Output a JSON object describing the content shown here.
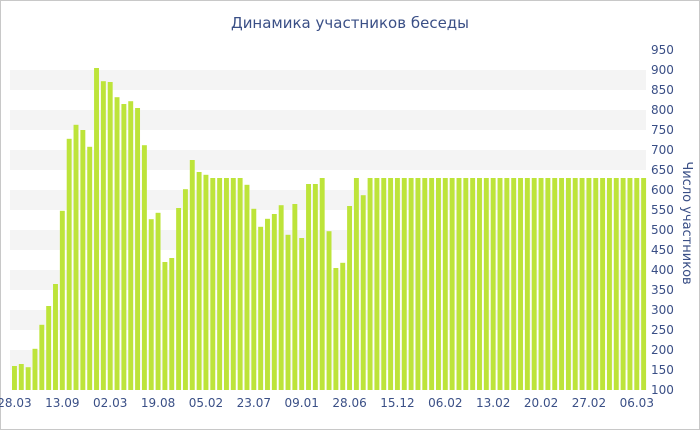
{
  "chart_data": {
    "type": "bar",
    "title": "Динамика участников беседы",
    "xlabel": "",
    "ylabel": "Число участников",
    "ylim": [
      100,
      950
    ],
    "yticks": [
      100,
      150,
      200,
      250,
      300,
      350,
      400,
      450,
      500,
      550,
      600,
      650,
      700,
      750,
      800,
      850,
      900,
      950
    ],
    "grid": "alternating horizontal bands",
    "bar_color": "#bde43a",
    "x_tick_labels": [
      "28.03",
      "13.09",
      "02.03",
      "19.08",
      "05.02",
      "23.07",
      "09.01",
      "28.06",
      "15.12",
      "06.02",
      "13.02",
      "20.02",
      "27.02",
      "06.03"
    ],
    "x_tick_bar_index": [
      0,
      7,
      14,
      21,
      28,
      35,
      42,
      49,
      56,
      63,
      70,
      77,
      84,
      91
    ],
    "series": [
      {
        "values": [
          160,
          165,
          157,
          203,
          263,
          310,
          365,
          548,
          728,
          763,
          750,
          708,
          905,
          872,
          870,
          832,
          815,
          822,
          805,
          712,
          527,
          543,
          420,
          430,
          555,
          602,
          675,
          645,
          638,
          630,
          630,
          630,
          630,
          630,
          613,
          553,
          508,
          528,
          540,
          562,
          488,
          565,
          480,
          615,
          615,
          630,
          497,
          405,
          418,
          560,
          630,
          587,
          630,
          630,
          630,
          630,
          630,
          630,
          630,
          630,
          630,
          630,
          630,
          630,
          630,
          630,
          630,
          630,
          630,
          630,
          630,
          630,
          630,
          630,
          630,
          630,
          630,
          630,
          630,
          630,
          630,
          630,
          630,
          630,
          630,
          630,
          630,
          630,
          630,
          630,
          630,
          630,
          630
        ]
      }
    ]
  }
}
